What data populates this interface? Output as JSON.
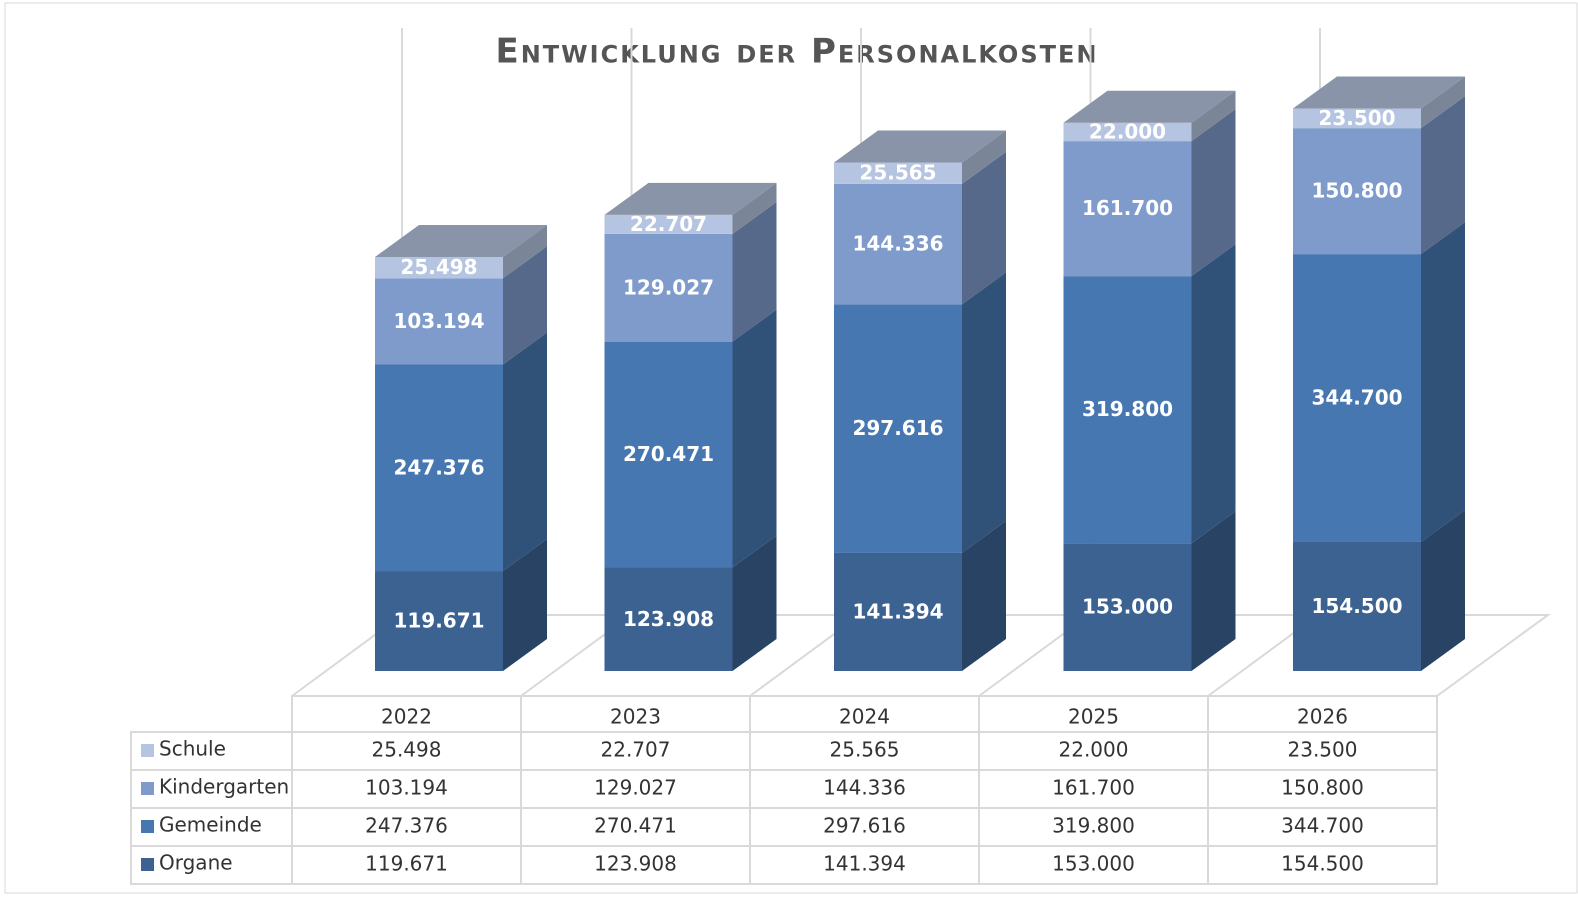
{
  "chart_data": {
    "type": "bar3d_stacked",
    "title": "Entwicklung der Personalkosten",
    "categories": [
      "2022",
      "2023",
      "2024",
      "2025",
      "2026"
    ],
    "series": [
      {
        "name": "Organe",
        "color": "#3b6291",
        "values": [
          119671,
          123908,
          141394,
          153000,
          154500
        ],
        "value_labels": [
          "119.671",
          "123.908",
          "141.394",
          "153.000",
          "154.500"
        ]
      },
      {
        "name": "Gemeinde",
        "color": "#4777b1",
        "values": [
          247376,
          270471,
          297616,
          319800,
          344700
        ],
        "value_labels": [
          "247.376",
          "270.471",
          "297.616",
          "319.800",
          "344.700"
        ]
      },
      {
        "name": "Kindergarten",
        "color": "#7f9bcb",
        "values": [
          103194,
          129027,
          144336,
          161700,
          150800
        ],
        "value_labels": [
          "103.194",
          "129.027",
          "144.336",
          "161.700",
          "150.800"
        ]
      },
      {
        "name": "Schule",
        "color": "#b5c4e0",
        "values": [
          25498,
          22707,
          25565,
          22000,
          23500
        ],
        "value_labels": [
          "25.498",
          "22.707",
          "25.565",
          "22.000",
          "23.500"
        ]
      }
    ]
  }
}
